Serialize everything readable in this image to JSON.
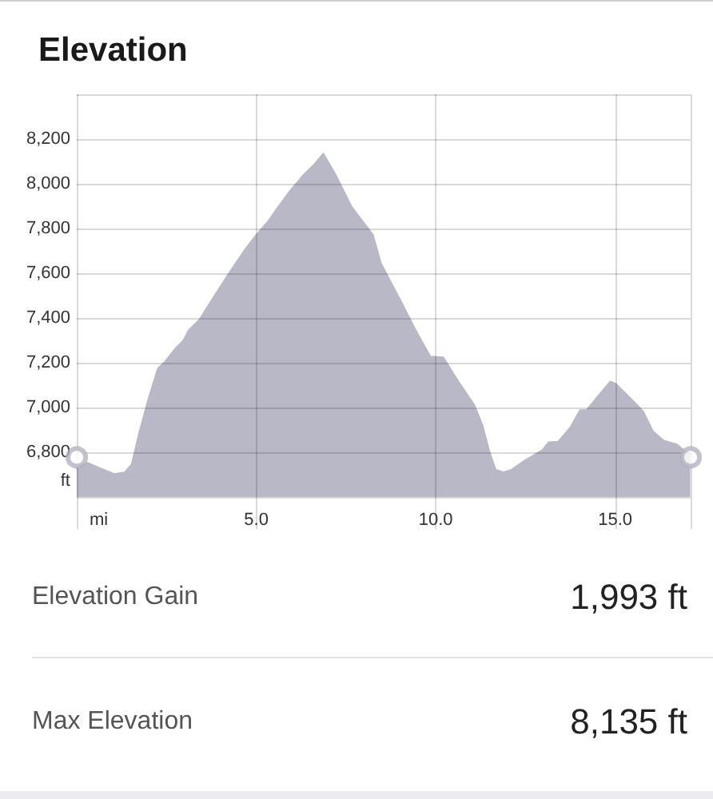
{
  "chart_data": {
    "type": "area",
    "title": "Elevation",
    "xlabel": "mi",
    "ylabel": "ft",
    "series": [
      {
        "color": "#b9b8c6",
        "x": [
          0,
          0.3,
          0.67,
          1.04,
          1.34,
          1.53,
          1.74,
          2.0,
          2.26,
          2.46,
          2.75,
          2.97,
          3.12,
          3.42,
          3.79,
          4.24,
          4.68,
          4.99,
          5.35,
          5.57,
          5.95,
          6.32,
          6.62,
          6.87,
          7.21,
          7.65,
          8.25,
          8.47,
          8.99,
          9.44,
          9.85,
          10.21,
          10.63,
          11.07,
          11.3,
          11.49,
          11.67,
          11.89,
          12.11,
          12.48,
          12.97,
          13.15,
          13.41,
          13.75,
          14.02,
          14.2,
          14.49,
          14.86,
          15.01,
          15.31,
          15.65,
          15.78,
          16.05,
          16.35,
          16.72,
          16.94,
          17.09
        ],
        "values": [
          6727,
          6753,
          6727,
          6703,
          6710,
          6746,
          6887,
          7040,
          7174,
          7205,
          7264,
          7299,
          7346,
          7393,
          7487,
          7600,
          7704,
          7769,
          7836,
          7887,
          7970,
          8040,
          8087,
          8135,
          8040,
          7899,
          7772,
          7646,
          7487,
          7346,
          7228,
          7224,
          7116,
          7012,
          6922,
          6805,
          6722,
          6710,
          6722,
          6763,
          6809,
          6845,
          6847,
          6911,
          6988,
          6988,
          7045,
          7116,
          7106,
          7059,
          7005,
          6981,
          6894,
          6852,
          6835,
          6805,
          6793
        ]
      },
      {
        "type": "scatter",
        "color": "#b3b2c0",
        "marker": "circle",
        "x": [
          0,
          17.1
        ],
        "values": [
          6777,
          6777
        ]
      }
    ],
    "xlim": [
      0,
      17.1
    ],
    "xticks": [
      {
        "value": 0,
        "label": null
      },
      {
        "value": 5,
        "label": "5.0"
      },
      {
        "value": 10,
        "label": "10.0"
      },
      {
        "value": 15,
        "label": "15.0"
      },
      {
        "value": 17.1,
        "label": null
      }
    ],
    "ylim": [
      6600,
      8400
    ],
    "yticks": [
      {
        "value": 6600,
        "label": null
      },
      {
        "value": 6800,
        "label": "6,800"
      },
      {
        "value": 7000,
        "label": "7,000"
      },
      {
        "value": 7200,
        "label": "7,200"
      },
      {
        "value": 7400,
        "label": "7,400"
      },
      {
        "value": 7600,
        "label": "7,600"
      },
      {
        "value": 7800,
        "label": "7,800"
      },
      {
        "value": 8000,
        "label": "8,000"
      },
      {
        "value": 8200,
        "label": "8,200"
      },
      {
        "value": 8400,
        "label": null
      }
    ],
    "grid": true,
    "annotations": [
      "Elevation Gain",
      "1,993 ft",
      "Max Elevation",
      "8,135 ft"
    ]
  }
}
